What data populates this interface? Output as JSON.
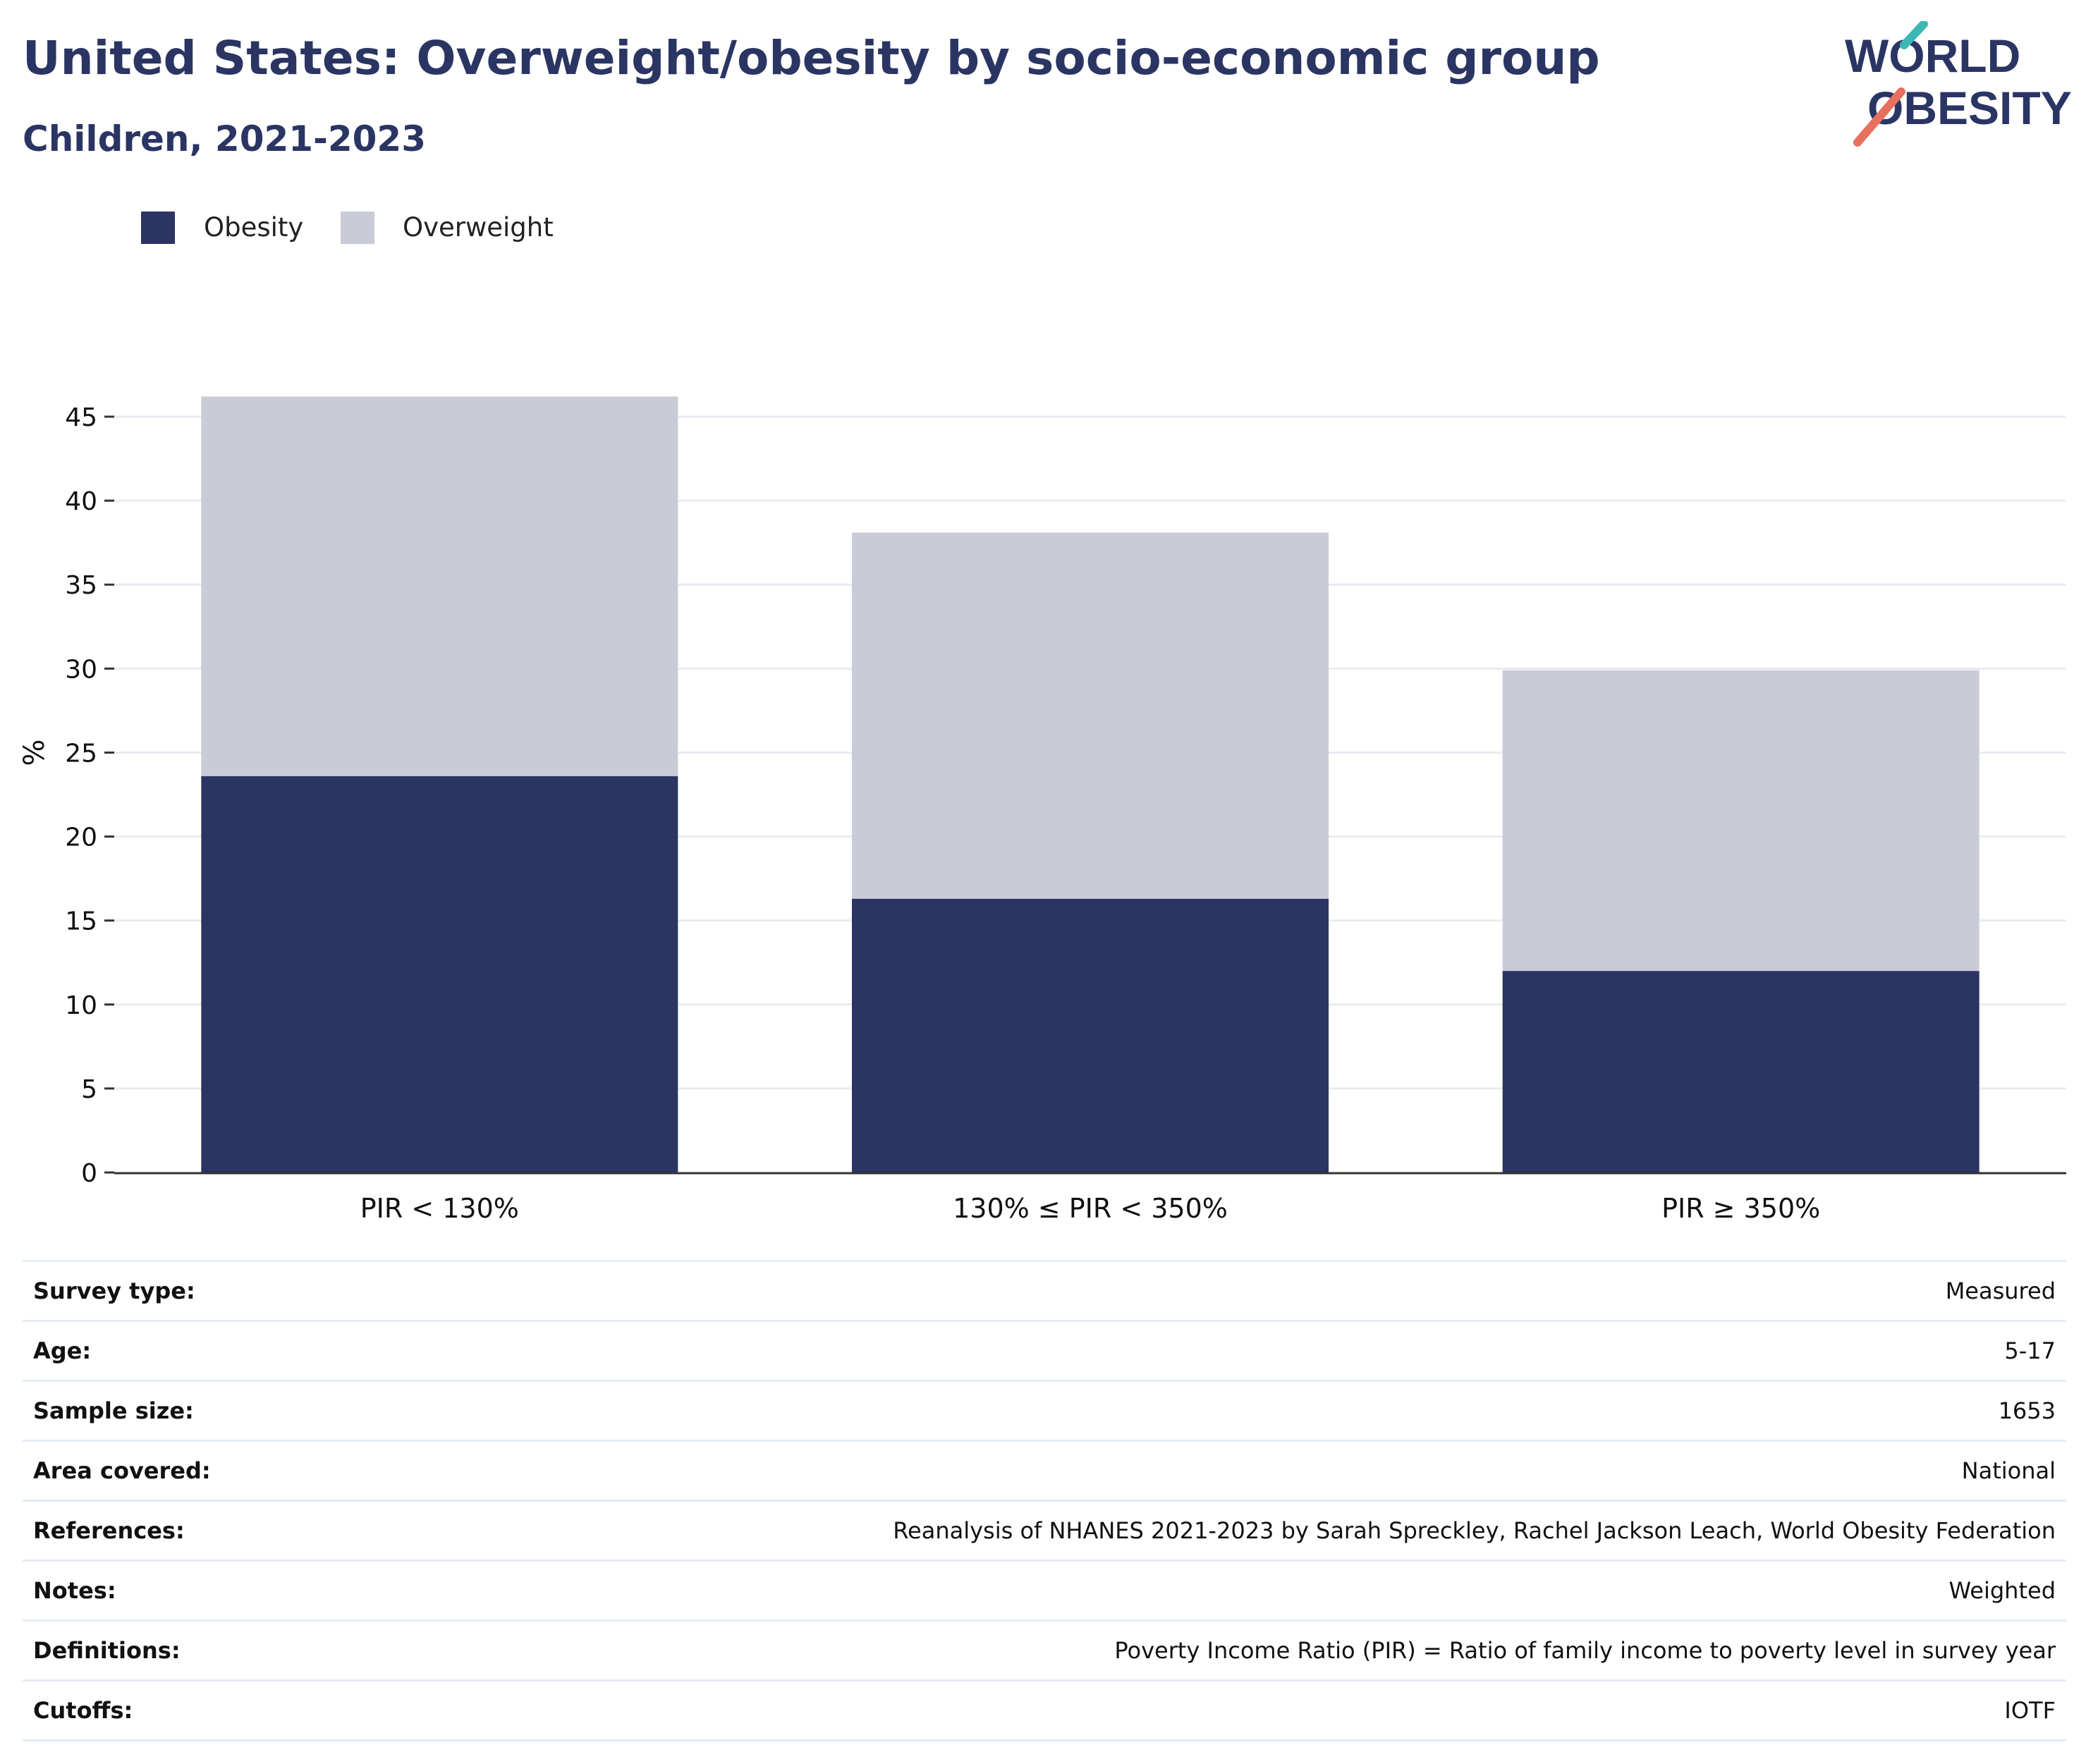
{
  "header": {
    "title": "United States: Overweight/obesity by socio-economic group",
    "subtitle": "Children, 2021-2023"
  },
  "logo": {
    "line1": "WORLD",
    "line2": "OBESITY",
    "text_color": "#2a3563",
    "accent_teal": "#3bb8b4",
    "accent_coral": "#e8705e"
  },
  "legend": {
    "items": [
      {
        "label": "Obesity",
        "color": "#2a3563"
      },
      {
        "label": "Overweight",
        "color": "#c9cbd7"
      }
    ]
  },
  "chart_data": {
    "type": "bar",
    "stacked": true,
    "categories": [
      "PIR < 130%",
      "130% ≤ PIR < 350%",
      "PIR ≥ 350%"
    ],
    "series": [
      {
        "name": "Obesity",
        "values": [
          23.6,
          16.3,
          12.0
        ],
        "color": "#2a3563"
      },
      {
        "name": "Overweight",
        "values": [
          22.6,
          21.8,
          17.9
        ],
        "color": "#c9cbd7"
      }
    ],
    "ylabel": "%",
    "xlabel": "",
    "ylim": [
      0,
      47
    ],
    "yticks": [
      0,
      5,
      10,
      15,
      20,
      25,
      30,
      35,
      40,
      45
    ],
    "grid": true,
    "legend_position": "top-left"
  },
  "info": {
    "rows": [
      {
        "key": "Survey type:",
        "value": "Measured"
      },
      {
        "key": "Age:",
        "value": "5-17"
      },
      {
        "key": "Sample size:",
        "value": "1653"
      },
      {
        "key": "Area covered:",
        "value": "National"
      },
      {
        "key": "References:",
        "value": "Reanalysis of NHANES 2021-2023 by Sarah Spreckley, Rachel Jackson Leach, World Obesity Federation"
      },
      {
        "key": "Notes:",
        "value": "Weighted"
      },
      {
        "key": "Definitions:",
        "value": "Poverty Income Ratio (PIR) = Ratio of family income to poverty level in survey year"
      },
      {
        "key": "Cutoffs:",
        "value": "IOTF"
      }
    ]
  }
}
